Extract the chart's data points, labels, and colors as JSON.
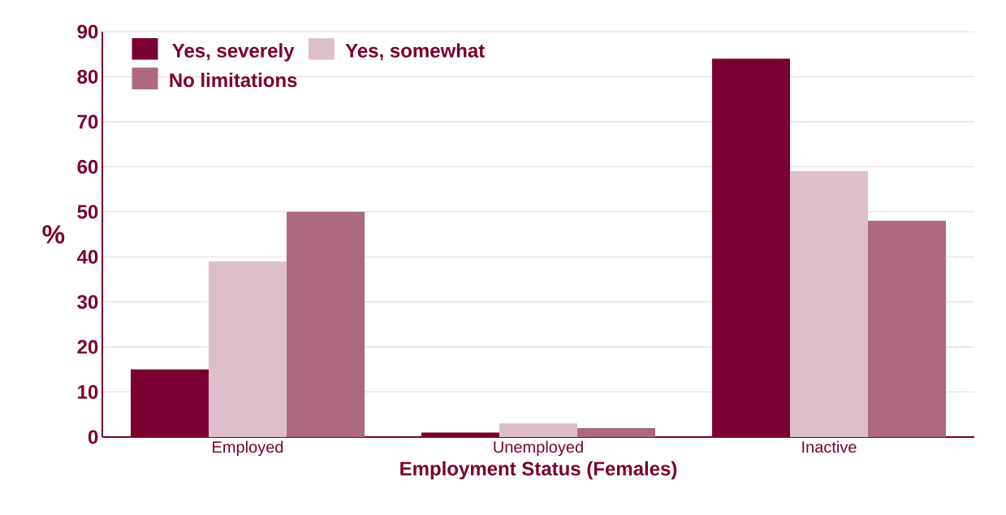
{
  "chart_data": {
    "type": "bar",
    "xlabel": "Employment Status (Females)",
    "ylabel": "%",
    "categories": [
      "Employed",
      "Unemployed",
      "Inactive"
    ],
    "series": [
      {
        "name": "Yes, severely",
        "color": "#7a0031",
        "values": [
          15,
          1,
          84
        ]
      },
      {
        "name": "Yes, somewhat",
        "color": "#dcbfcb",
        "values": [
          39,
          3,
          59
        ]
      },
      {
        "name": "No limitations",
        "color": "#ad6882",
        "values": [
          50,
          2,
          48
        ]
      }
    ],
    "ylim": [
      0,
      90
    ],
    "yticks": [
      0,
      10,
      20,
      30,
      40,
      50,
      60,
      70,
      80,
      90
    ],
    "grid": "y",
    "legend": "top left"
  }
}
